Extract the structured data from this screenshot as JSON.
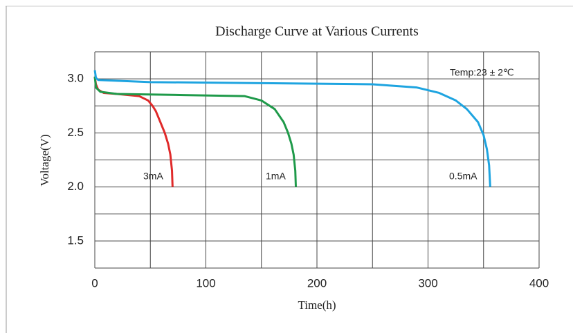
{
  "chart_data": {
    "type": "line",
    "title": "Discharge Curve at Various Currents",
    "xlabel": "Time(h)",
    "ylabel": "Voltage(V)",
    "xlim": [
      0,
      400
    ],
    "ylim": [
      1.25,
      3.25
    ],
    "xticks": [
      0,
      100,
      200,
      300,
      400
    ],
    "yticks": [
      {
        "value": 1.5,
        "label": "1.5"
      },
      {
        "value": 2,
        "label": "2.0"
      },
      {
        "value": 2.5,
        "label": "2.5"
      },
      {
        "value": 3,
        "label": "3.0"
      }
    ],
    "x_gridlines": [
      0,
      50,
      100,
      150,
      200,
      250,
      300,
      350,
      400
    ],
    "y_gridlines": [
      1.25,
      1.5,
      1.75,
      2,
      2.25,
      2.5,
      2.75,
      3,
      3.25
    ],
    "grid": true,
    "annotations": [
      "Temp:23 ± 2℃",
      "3mA",
      "1mA",
      "0.5mA"
    ],
    "series": [
      {
        "name": "3mA",
        "color": "#e02a2a",
        "x": [
          0,
          1,
          3,
          8,
          20,
          40,
          48,
          52,
          55,
          59,
          63,
          66,
          68,
          69.5,
          70
        ],
        "values": [
          3.02,
          2.95,
          2.9,
          2.87,
          2.86,
          2.84,
          2.8,
          2.75,
          2.7,
          2.6,
          2.5,
          2.4,
          2.3,
          2.15,
          2.0
        ]
      },
      {
        "name": "1mA",
        "color": "#1f9a4a",
        "x": [
          0,
          1,
          5,
          20,
          80,
          135,
          150,
          162,
          170,
          174,
          177,
          179,
          180.5,
          181
        ],
        "values": [
          3.02,
          2.92,
          2.88,
          2.86,
          2.85,
          2.84,
          2.8,
          2.72,
          2.6,
          2.5,
          2.4,
          2.3,
          2.15,
          2.0
        ]
      },
      {
        "name": "0.5mA",
        "color": "#1ea4e0",
        "x": [
          0,
          1,
          3,
          50,
          150,
          250,
          290,
          310,
          325,
          335,
          345,
          350,
          353,
          355,
          356
        ],
        "values": [
          3.08,
          3.01,
          2.99,
          2.97,
          2.96,
          2.95,
          2.92,
          2.87,
          2.8,
          2.72,
          2.6,
          2.48,
          2.35,
          2.2,
          2.0
        ]
      }
    ]
  }
}
